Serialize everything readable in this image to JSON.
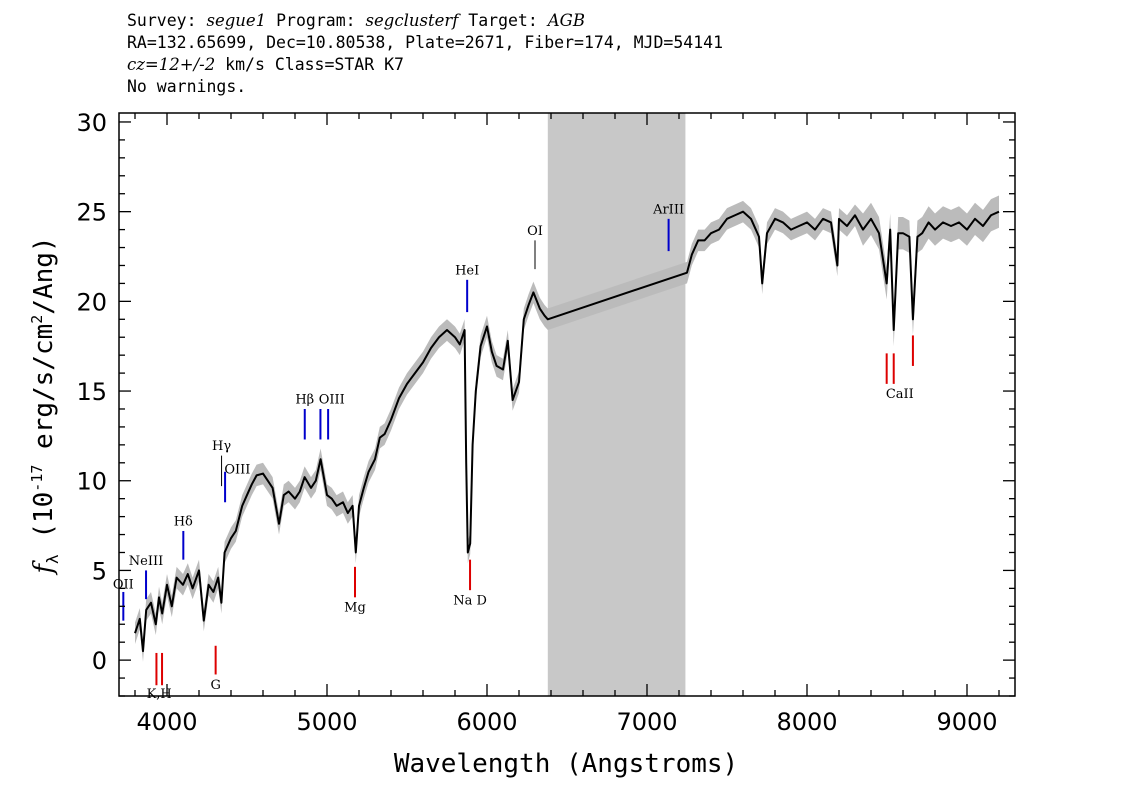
{
  "header": {
    "line1": {
      "survey_key": "Survey:",
      "survey": "segue1",
      "program_key": "Program:",
      "program": "segclusterf",
      "target_key": "Target:",
      "target": "AGB"
    },
    "line2": "RA=132.65699, Dec=10.80538, Plate=2671, Fiber=174, MJD=54141",
    "line3": {
      "cz": "cz=12+/-2",
      "rest": " km/s Class=STAR K7"
    },
    "line4": "No warnings."
  },
  "chart_data": {
    "type": "line",
    "xlabel": "Wavelength (Angstroms)",
    "ylabel": "f_λ (10^-17 erg/s/cm^2/Ang)",
    "xlim": [
      3700,
      9300
    ],
    "ylim": [
      -2,
      30.5
    ],
    "xticks": [
      4000,
      5000,
      6000,
      7000,
      8000,
      9000
    ],
    "yticks": [
      0,
      5,
      10,
      15,
      20,
      25,
      30
    ],
    "masked_region": [
      6380,
      7240
    ],
    "colors": {
      "spectrum": "#000000",
      "error": "#bbbbbb",
      "mask": "#c8c8c8",
      "emission": "#0000cc",
      "absorption": "#dd0000",
      "sky": "#000000"
    },
    "spectrum": {
      "x": [
        3800,
        3830,
        3850,
        3870,
        3900,
        3930,
        3950,
        3970,
        4000,
        4030,
        4060,
        4100,
        4130,
        4160,
        4200,
        4230,
        4260,
        4290,
        4320,
        4340,
        4360,
        4400,
        4430,
        4470,
        4500,
        4530,
        4560,
        4600,
        4630,
        4660,
        4700,
        4730,
        4760,
        4800,
        4830,
        4860,
        4900,
        4930,
        4960,
        5000,
        5030,
        5060,
        5100,
        5130,
        5160,
        5180,
        5200,
        5230,
        5260,
        5300,
        5330,
        5360,
        5400,
        5450,
        5500,
        5550,
        5600,
        5650,
        5700,
        5750,
        5800,
        5830,
        5860,
        5870,
        5880,
        5895,
        5910,
        5930,
        5960,
        6000,
        6030,
        6060,
        6100,
        6130,
        6160,
        6200,
        6230,
        6260,
        6290,
        6330,
        6360,
        6380,
        7250,
        7280,
        7320,
        7360,
        7400,
        7450,
        7500,
        7550,
        7600,
        7650,
        7700,
        7720,
        7750,
        7800,
        7850,
        7900,
        7950,
        8000,
        8050,
        8100,
        8150,
        8190,
        8200,
        8250,
        8300,
        8350,
        8400,
        8450,
        8498,
        8520,
        8542,
        8570,
        8600,
        8640,
        8662,
        8690,
        8720,
        8760,
        8800,
        8850,
        8900,
        8950,
        9000,
        9050,
        9100,
        9150,
        9200
      ],
      "y": [
        1.5,
        2.3,
        0.5,
        2.8,
        3.2,
        2.0,
        3.5,
        2.6,
        4.2,
        3.0,
        4.6,
        4.2,
        4.8,
        4.0,
        5.0,
        2.2,
        4.2,
        3.8,
        4.6,
        3.2,
        6.0,
        6.8,
        7.2,
        8.6,
        9.2,
        9.8,
        10.3,
        10.4,
        10.0,
        9.6,
        7.6,
        9.2,
        9.4,
        9.0,
        9.4,
        10.2,
        9.6,
        10.0,
        11.2,
        9.2,
        9.0,
        8.6,
        8.8,
        8.2,
        8.6,
        6.0,
        8.6,
        9.6,
        10.5,
        11.2,
        12.4,
        12.6,
        13.4,
        14.6,
        15.4,
        16.0,
        16.6,
        17.4,
        18.0,
        18.4,
        18.0,
        17.6,
        18.4,
        11.0,
        6.0,
        6.5,
        12.0,
        15.0,
        17.5,
        18.6,
        17.2,
        16.4,
        16.2,
        17.8,
        14.5,
        15.5,
        19.0,
        19.8,
        20.5,
        19.6,
        19.2,
        19.0,
        21.6,
        22.6,
        23.4,
        23.4,
        23.8,
        24.0,
        24.6,
        24.8,
        25.0,
        24.6,
        23.6,
        21.0,
        23.8,
        24.6,
        24.4,
        24.0,
        24.2,
        24.4,
        24.0,
        24.6,
        24.4,
        22.0,
        24.6,
        24.2,
        24.8,
        24.0,
        24.6,
        23.8,
        21.0,
        24.0,
        18.4,
        23.8,
        23.8,
        23.6,
        19.0,
        23.6,
        23.8,
        24.4,
        24.0,
        24.4,
        24.2,
        24.4,
        24.0,
        24.6,
        24.2,
        24.8,
        25.0
      ]
    },
    "line_markers": [
      {
        "label": "OII",
        "x": 3727,
        "type": "emission",
        "y0": 2.2,
        "y1": 3.8
      },
      {
        "label": "NeIII",
        "x": 3869,
        "type": "emission",
        "y0": 3.4,
        "y1": 5.0
      },
      {
        "label": "K",
        "x": 3934,
        "type": "absorption",
        "y0": -1.4,
        "y1": 0.4
      },
      {
        "label": "H",
        "x": 3969,
        "type": "absorption",
        "y0": -1.4,
        "y1": 0.4
      },
      {
        "label": "Hδ",
        "x": 4102,
        "type": "emission",
        "y0": 5.6,
        "y1": 7.2
      },
      {
        "label": "G",
        "x": 4304,
        "type": "absorption",
        "y0": -0.8,
        "y1": 0.8
      },
      {
        "label": "Hγ",
        "x": 4341,
        "type": "sky",
        "y0": 9.7,
        "y1": 11.4
      },
      {
        "label": "OIII",
        "x": 4363,
        "type": "emission",
        "y0": 8.8,
        "y1": 10.5
      },
      {
        "label": "Hβ",
        "x": 4861,
        "type": "emission",
        "y0": 12.3,
        "y1": 14.0
      },
      {
        "label": "OIII",
        "x": 4959,
        "type": "emission",
        "y0": 12.3,
        "y1": 14.0
      },
      {
        "label": "OIII",
        "x": 5007,
        "type": "emission",
        "y0": 12.3,
        "y1": 14.0
      },
      {
        "label": "Mg",
        "x": 5175,
        "type": "absorption",
        "y0": 3.5,
        "y1": 5.2
      },
      {
        "label": "Na D",
        "x": 5894,
        "type": "absorption",
        "y0": 3.9,
        "y1": 5.6
      },
      {
        "label": "HeI",
        "x": 5876,
        "type": "emission",
        "y0": 19.4,
        "y1": 21.2
      },
      {
        "label": "OI",
        "x": 6300,
        "type": "sky",
        "y0": 21.8,
        "y1": 23.4
      },
      {
        "label": "ArIII",
        "x": 7135,
        "type": "emission",
        "y0": 22.8,
        "y1": 24.6
      },
      {
        "label": "CaII",
        "x": 8498,
        "type": "absorption",
        "y0": 15.4,
        "y1": 17.1
      },
      {
        "label": "CaII",
        "x": 8542,
        "type": "absorption",
        "y0": 15.4,
        "y1": 17.1
      },
      {
        "label": "CaII",
        "x": 8662,
        "type": "absorption",
        "y0": 16.4,
        "y1": 18.1
      }
    ],
    "text_labels": [
      {
        "text": "OII",
        "x": 3727,
        "y": 4.0
      },
      {
        "text": "NeIII",
        "x": 3869,
        "y": 5.3
      },
      {
        "text": "K,H",
        "x": 3951,
        "y": -2.1
      },
      {
        "text": "Hδ",
        "x": 4102,
        "y": 7.5
      },
      {
        "text": "G",
        "x": 4304,
        "y": -1.6
      },
      {
        "text": "Hγ",
        "x": 4341,
        "y": 11.7
      },
      {
        "text": "OIII",
        "x": 4440,
        "y": 10.4
      },
      {
        "text": "Hβ",
        "x": 4861,
        "y": 14.3
      },
      {
        "text": "OIII",
        "x": 5030,
        "y": 14.3
      },
      {
        "text": "Mg",
        "x": 5175,
        "y": 2.7
      },
      {
        "text": "Na D",
        "x": 5894,
        "y": 3.1
      },
      {
        "text": "HeI",
        "x": 5876,
        "y": 21.5
      },
      {
        "text": "OI",
        "x": 6300,
        "y": 23.7
      },
      {
        "text": "ArIII",
        "x": 7135,
        "y": 24.9
      },
      {
        "text": "CaII",
        "x": 8580,
        "y": 14.6
      }
    ]
  }
}
